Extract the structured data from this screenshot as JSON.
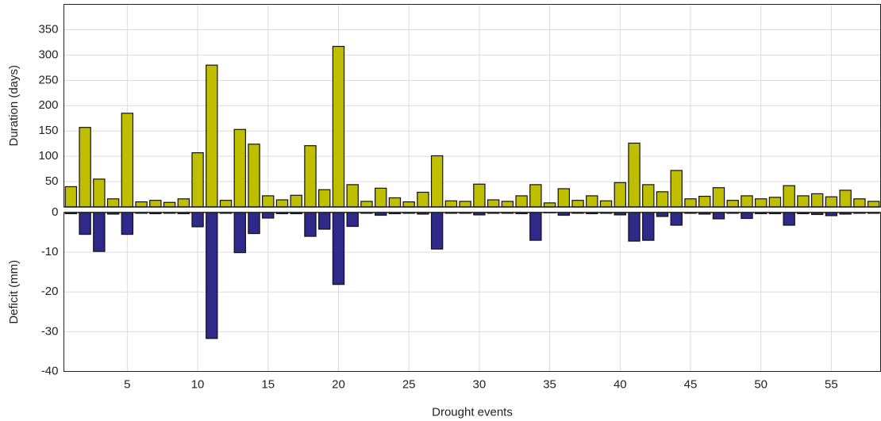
{
  "chart_data": [
    {
      "type": "bar",
      "ylabel": "Duration (days)",
      "x": [
        1,
        2,
        3,
        4,
        5,
        6,
        7,
        8,
        9,
        10,
        11,
        12,
        13,
        14,
        15,
        16,
        17,
        18,
        19,
        20,
        21,
        22,
        23,
        24,
        25,
        26,
        27,
        28,
        29,
        30,
        31,
        32,
        33,
        34,
        35,
        36,
        37,
        38,
        39,
        40,
        41,
        42,
        43,
        44,
        45,
        46,
        47,
        48,
        49,
        50,
        51,
        52,
        53,
        54,
        55,
        56,
        57,
        58
      ],
      "xlim": [
        0.5,
        58.5
      ],
      "xticks": [
        5,
        10,
        15,
        20,
        25,
        30,
        35,
        40,
        45,
        50,
        55
      ],
      "ylim": [
        0,
        400
      ],
      "yticks": [
        50,
        100,
        150,
        200,
        250,
        300,
        350
      ],
      "grid": true,
      "series": [
        {
          "color": "#bfbf00",
          "values": [
            40,
            157,
            55,
            16,
            185,
            10,
            13,
            9,
            16,
            107,
            280,
            13,
            153,
            124,
            22,
            14,
            23,
            121,
            34,
            317,
            44,
            11,
            37,
            18,
            10,
            29,
            101,
            12,
            11,
            45,
            14,
            11,
            22,
            44,
            8,
            36,
            13,
            22,
            12,
            48,
            126,
            44,
            30,
            72,
            16,
            21,
            38,
            13,
            22,
            16,
            19,
            42,
            22,
            26,
            20,
            33,
            16,
            11
          ]
        }
      ]
    },
    {
      "type": "bar",
      "ylabel": "Deficit (mm)",
      "xlabel": "Drought events",
      "x": [
        1,
        2,
        3,
        4,
        5,
        6,
        7,
        8,
        9,
        10,
        11,
        12,
        13,
        14,
        15,
        16,
        17,
        18,
        19,
        20,
        21,
        22,
        23,
        24,
        25,
        26,
        27,
        28,
        29,
        30,
        31,
        32,
        33,
        34,
        35,
        36,
        37,
        38,
        39,
        40,
        41,
        42,
        43,
        44,
        45,
        46,
        47,
        48,
        49,
        50,
        51,
        52,
        53,
        54,
        55,
        56,
        57,
        58
      ],
      "xlim": [
        0.5,
        58.5
      ],
      "xticks": [
        5,
        10,
        15,
        20,
        25,
        30,
        35,
        40,
        45,
        50,
        55
      ],
      "ylim": [
        -40,
        0
      ],
      "yticks": [
        0,
        -10,
        -20,
        -30,
        -40
      ],
      "grid": true,
      "series": [
        {
          "color": "#2f2a8a",
          "values": [
            -0.3,
            -5.5,
            -9.8,
            -0.4,
            -5.5,
            -0.2,
            -0.3,
            -0.2,
            -0.3,
            -3.6,
            -31.7,
            -0.2,
            -10.1,
            -5.3,
            -1.4,
            -0.3,
            -0.3,
            -6,
            -4.2,
            -18.1,
            -3.5,
            -0.2,
            -0.7,
            -0.3,
            -0.2,
            -0.4,
            -9.2,
            -0.2,
            -0.2,
            -0.6,
            -0.2,
            -0.2,
            -0.3,
            -7,
            -0.1,
            -0.7,
            -0.2,
            -0.3,
            -0.2,
            -0.6,
            -7.2,
            -7,
            -1,
            -3.2,
            -0.2,
            -0.4,
            -1.6,
            -0.2,
            -1.5,
            -0.3,
            -0.3,
            -3.2,
            -0.3,
            -0.5,
            -0.8,
            -0.4,
            -0.2,
            -0.2
          ]
        }
      ]
    }
  ]
}
